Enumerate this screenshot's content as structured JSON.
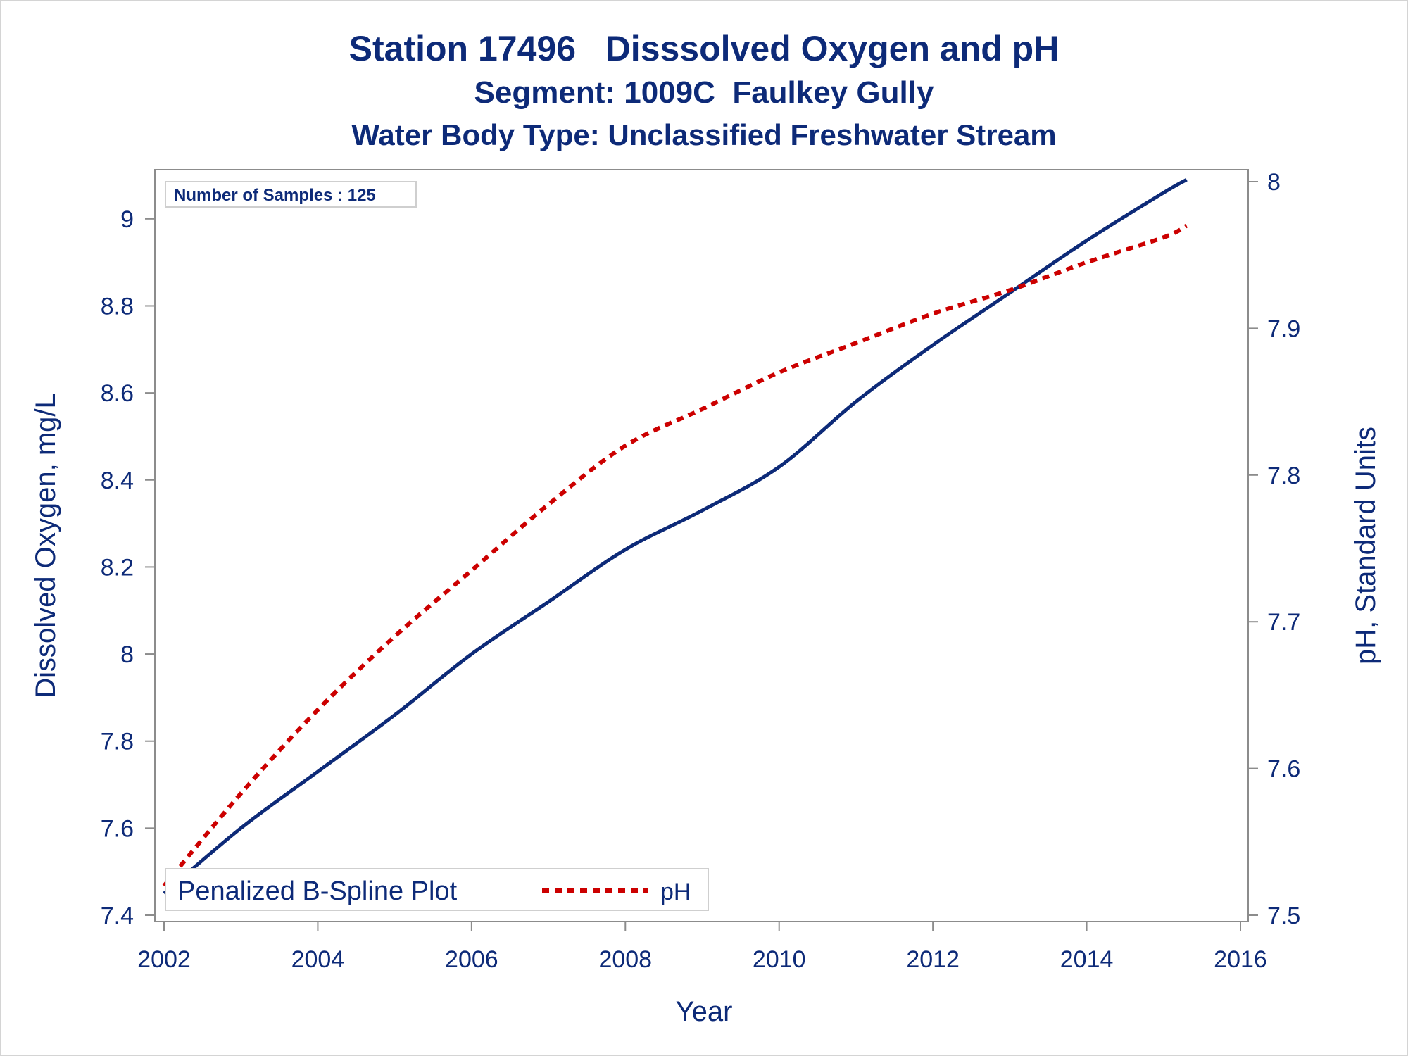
{
  "titles": {
    "line1": "Station 17496   Disssolved Oxygen and pH",
    "line2": "Segment: 1009C  Faulkey Gully",
    "line3": "Water Body Type: Unclassified Freshwater Stream"
  },
  "inset_label": "Number of Samples : 125",
  "colors": {
    "do_line": "#0d2a78",
    "ph_line": "#cc0000",
    "text": "#0d2a78",
    "axis": "#8c8c8c"
  },
  "chart_data": {
    "type": "line",
    "xlabel": "Year",
    "ylabel": "Dissolved Oxygen, mg/L",
    "y2label": "pH, Standard Units",
    "xlim": [
      2002,
      2016
    ],
    "ylim": [
      7.4,
      9.1
    ],
    "y2lim": [
      7.5,
      8.0
    ],
    "xticks": [
      "2002",
      "2004",
      "2006",
      "2008",
      "2010",
      "2012",
      "2014",
      "2016"
    ],
    "yticks": [
      "7.4",
      "7.6",
      "7.8",
      "8",
      "8.2",
      "8.4",
      "8.6",
      "8.8",
      "9"
    ],
    "y2ticks": [
      "7.5",
      "7.6",
      "7.7",
      "7.8",
      "7.9",
      "8"
    ],
    "grid": false,
    "legend": {
      "position": "bottom-left",
      "title": "Penalized B-Spline Plot"
    },
    "series": [
      {
        "axis": "left",
        "style": "solid",
        "x": [
          2002.0,
          2003,
          2004,
          2005,
          2006,
          2007,
          2008,
          2009,
          2010,
          2011,
          2012,
          2013,
          2014,
          2015,
          2015.3
        ],
        "y": [
          7.45,
          7.6,
          7.73,
          7.86,
          8.0,
          8.12,
          8.24,
          8.33,
          8.43,
          8.58,
          8.71,
          8.83,
          8.95,
          9.06,
          9.09
        ]
      },
      {
        "name": "pH",
        "axis": "right",
        "style": "dashed",
        "x": [
          2002.0,
          2003,
          2004,
          2005,
          2006,
          2007,
          2008,
          2009,
          2010,
          2011,
          2012,
          2013,
          2014,
          2015,
          2015.3
        ],
        "y": [
          7.52,
          7.583,
          7.64,
          7.69,
          7.735,
          7.78,
          7.82,
          7.845,
          7.87,
          7.89,
          7.91,
          7.926,
          7.945,
          7.962,
          7.97
        ]
      }
    ]
  }
}
